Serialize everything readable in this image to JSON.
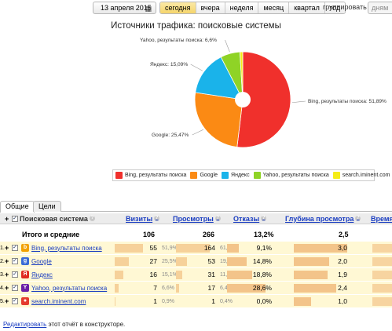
{
  "toolbar": {
    "date": "13 апреля 2015",
    "periods": [
      "сегодня",
      "вчера",
      "неделя",
      "месяц",
      "квартал",
      "год"
    ],
    "group_label": "группировать по",
    "group_value": "дням"
  },
  "chart_data": {
    "type": "pie",
    "title": "Источники трафика: поисковые системы",
    "slices": [
      {
        "label": "Bing, результаты поиска",
        "value": 51.89,
        "display": "Bing, результаты поиска: 51,89%",
        "color": "#f0302c"
      },
      {
        "label": "Google",
        "value": 25.47,
        "display": "Google: 25,47%",
        "color": "#fb8a14"
      },
      {
        "label": "Яндекс",
        "value": 15.09,
        "display": "Яндекс: 15,09%",
        "color": "#1ab3ea"
      },
      {
        "label": "Yahoo, результаты поиска",
        "value": 6.6,
        "display": "Yahoo, результаты поиска: 6,6%",
        "color": "#8fd326"
      },
      {
        "label": "search.iminent.com",
        "value": 0.94,
        "display": "",
        "color": "#f5ec17"
      }
    ]
  },
  "tabs": [
    "Общие",
    "Цели"
  ],
  "table": {
    "headers": {
      "engine": "Поисковая система",
      "visits": "Визиты",
      "views": "Просмотры",
      "bounces": "Отказы",
      "depth": "Глубина просмотра",
      "time": "Время н"
    },
    "total": {
      "label": "Итого и средние",
      "visits": "106",
      "views": "266",
      "bounces": "13,2%",
      "depth": "2,5"
    },
    "rows": [
      {
        "marker": "1.",
        "name": "Bing, результаты поиска",
        "icon": "bing-icon",
        "icon_color": "#f2a100",
        "icon_glyph": "b",
        "visits": "55",
        "visits_pct": "51,9%",
        "visits_frac": 0.519,
        "views": "164",
        "views_pct": "61,7%",
        "views_frac": 0.617,
        "bounces": "9,1%",
        "bounce_frac": 0.091,
        "depth": "3,0",
        "depth_frac": 1.0
      },
      {
        "marker": "2.",
        "name": "Google",
        "icon": "google-icon",
        "icon_color": "#3b6bd6",
        "icon_glyph": "g",
        "visits": "27",
        "visits_pct": "25,5%",
        "visits_frac": 0.255,
        "views": "53",
        "views_pct": "19,9%",
        "views_frac": 0.199,
        "bounces": "14,8%",
        "bounce_frac": 0.148,
        "depth": "2,0",
        "depth_frac": 0.66
      },
      {
        "marker": "3.",
        "name": "Яндекс",
        "icon": "yandex-icon",
        "icon_color": "#e02a20",
        "icon_glyph": "Я",
        "visits": "16",
        "visits_pct": "15,1%",
        "visits_frac": 0.151,
        "views": "31",
        "views_pct": "11,7%",
        "views_frac": 0.117,
        "bounces": "18,8%",
        "bounce_frac": 0.188,
        "depth": "1,9",
        "depth_frac": 0.63
      },
      {
        "marker": "4.",
        "name": "Yahoo, результаты поиска",
        "icon": "yahoo-icon",
        "icon_color": "#6b1fa6",
        "icon_glyph": "Y",
        "visits": "7",
        "visits_pct": "6,6%",
        "visits_frac": 0.066,
        "views": "17",
        "views_pct": "6,4%",
        "views_frac": 0.064,
        "bounces": "28,6%",
        "bounce_frac": 0.286,
        "depth": "2,4",
        "depth_frac": 0.8
      },
      {
        "marker": "5.",
        "name": "search.iminent.com",
        "icon": "iminent-icon",
        "icon_color": "#e43b2e",
        "icon_glyph": "●",
        "visits": "1",
        "visits_pct": "0,9%",
        "visits_frac": 0.009,
        "views": "1",
        "views_pct": "0,4%",
        "views_frac": 0.004,
        "bounces": "0,0%",
        "bounce_frac": 0.0,
        "depth": "1,0",
        "depth_frac": 0.33
      }
    ]
  },
  "footer": {
    "link": "Редактировать",
    "text": "этот отчёт в конструкторе."
  }
}
